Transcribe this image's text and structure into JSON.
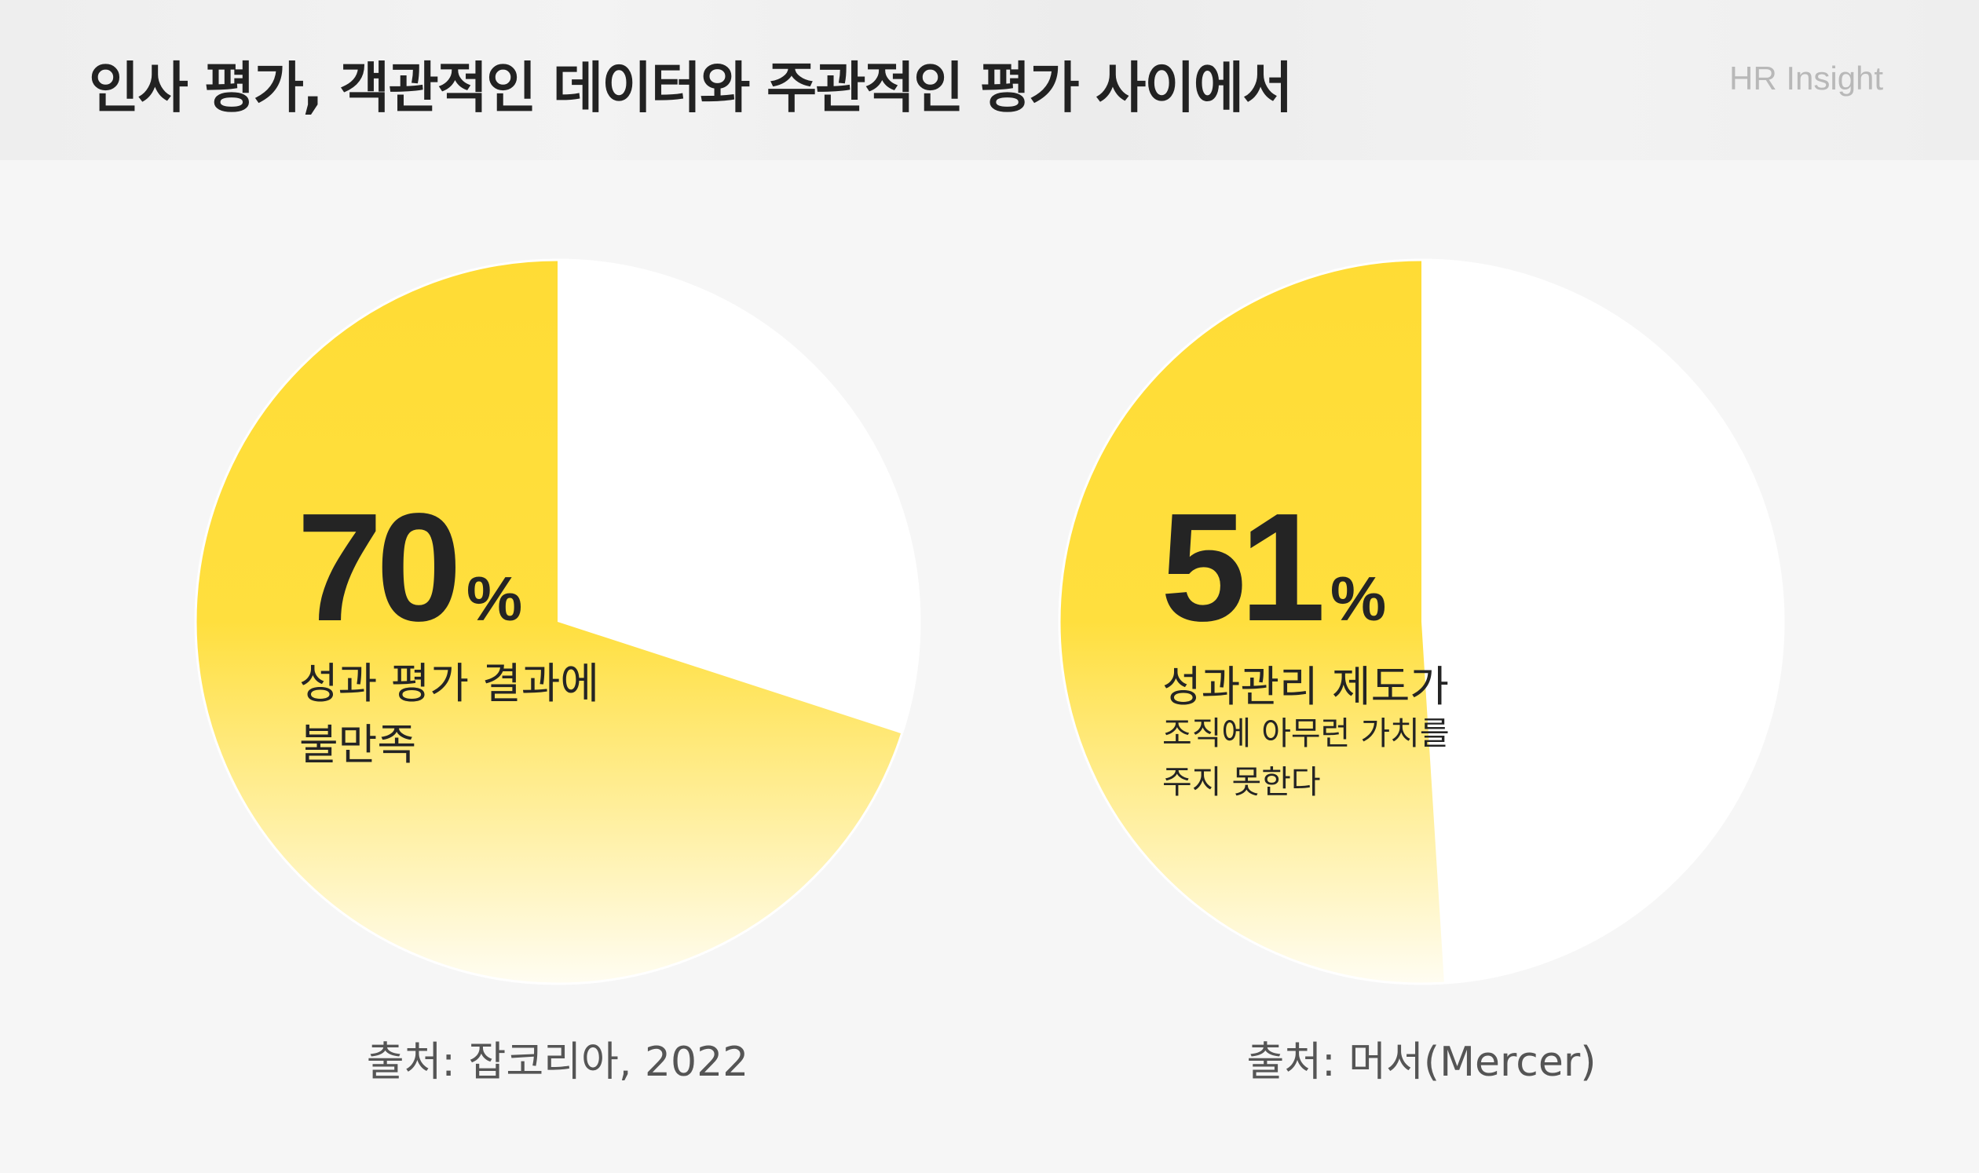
{
  "header": {
    "title": "인사 평가, 객관적인 데이터와 주관적인 평가 사이에서",
    "brand": "HR Insight"
  },
  "colors": {
    "accent": "#FFDC35",
    "accent_fade": "#FFFDF2",
    "remainder": "#FFFFFF",
    "text": "#242424"
  },
  "chart_data": [
    {
      "type": "pie",
      "values": [
        70,
        30
      ],
      "highlight_value": "70",
      "unit": "%",
      "label_line1": "성과 평가 결과에",
      "label_line2": "불만족",
      "source": "출처: 잡코리아, 2022"
    },
    {
      "type": "pie",
      "values": [
        51,
        49
      ],
      "highlight_value": "51",
      "unit": "%",
      "label_line1": "성과관리 제도가",
      "label_line2": "조직에 아무런 가치를",
      "label_line3": "주지 못한다",
      "source": "출처: 머서(Mercer)"
    }
  ]
}
